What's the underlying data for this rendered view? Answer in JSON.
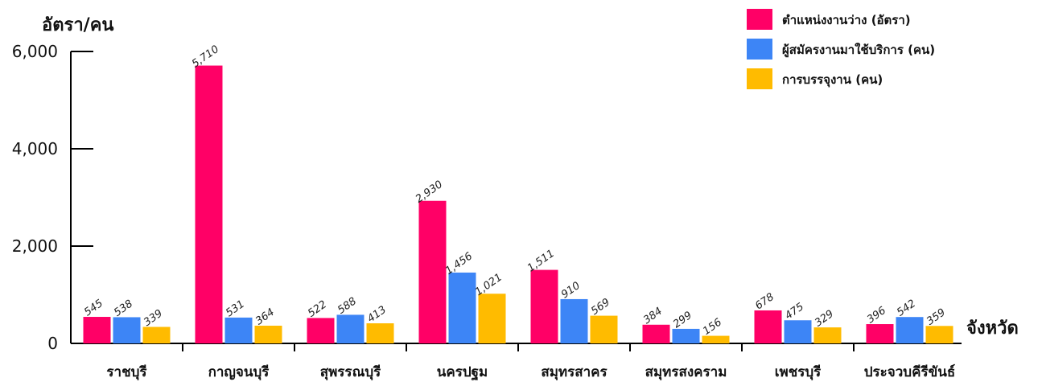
{
  "chart_data": {
    "type": "bar",
    "ylabel": "อัตรา/คน",
    "xlabel": "จังหวัด",
    "ylim": [
      0,
      6000
    ],
    "yticks": [
      "0",
      "2,000",
      "4,000",
      "6,000"
    ],
    "ytick_values": [
      0,
      2000,
      4000,
      6000
    ],
    "categories": [
      "ราชบุรี",
      "กาญจนบุรี",
      "สุพรรณบุรี",
      "นครปฐม",
      "สมุทรสาคร",
      "สมุทรสงคราม",
      "เพชรบุรี",
      "ประจวบคีรีขันธ์"
    ],
    "series": [
      {
        "name": "ตำแหน่งงานว่าง (อัตรา)",
        "color": "#ff0066",
        "values": [
          545,
          5710,
          522,
          2930,
          1511,
          384,
          678,
          396
        ],
        "labels": [
          "545",
          "5,710",
          "522",
          "2,930",
          "1,511",
          "384",
          "678",
          "396"
        ]
      },
      {
        "name": "ผู้สมัครงานมาใช้บริการ (คน)",
        "color": "#3d85f6",
        "values": [
          538,
          531,
          588,
          1456,
          910,
          299,
          475,
          542
        ],
        "labels": [
          "538",
          "531",
          "588",
          "1,456",
          "910",
          "299",
          "475",
          "542"
        ]
      },
      {
        "name": "การบรรจุงาน (คน)",
        "color": "#ffbb00",
        "values": [
          339,
          364,
          413,
          1021,
          569,
          156,
          329,
          359
        ],
        "labels": [
          "339",
          "364",
          "413",
          "1,021",
          "569",
          "156",
          "329",
          "359"
        ]
      }
    ],
    "grid": false,
    "legend_position": "top-right"
  }
}
